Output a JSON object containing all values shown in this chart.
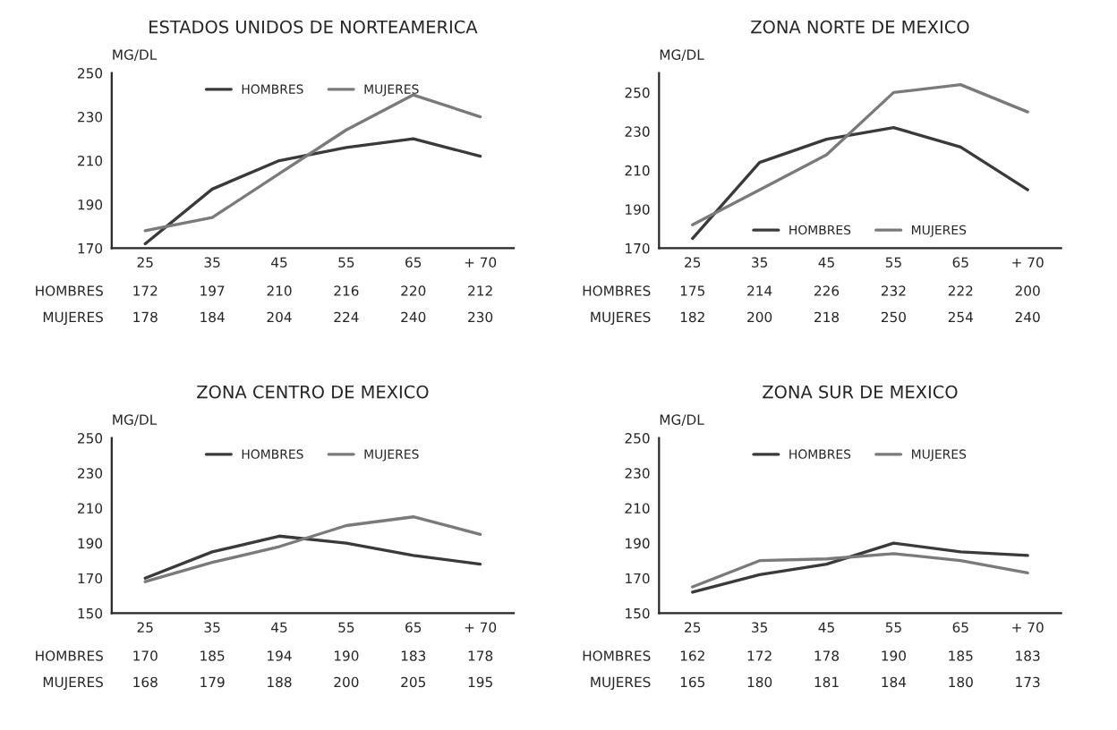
{
  "chart_data": [
    {
      "type": "line",
      "title": "ESTADOS UNIDOS DE NORTEAMERICA",
      "ylabel": "MG/DL",
      "categories": [
        "25",
        "35",
        "45",
        "55",
        "65",
        "+ 70"
      ],
      "ylim": [
        170,
        250
      ],
      "yticks": [
        170,
        190,
        210,
        230,
        250
      ],
      "legend": "top",
      "data_labels": true,
      "series": [
        {
          "name": "HOMBRES",
          "color": "#3a3a3a",
          "values": [
            172,
            197,
            210,
            216,
            220,
            212
          ]
        },
        {
          "name": "MUJERES",
          "color": "#7a7a7a",
          "values": [
            178,
            184,
            204,
            224,
            240,
            230
          ]
        }
      ]
    },
    {
      "type": "line",
      "title": "ZONA NORTE DE MEXICO",
      "ylabel": "MG/DL",
      "categories": [
        "25",
        "35",
        "45",
        "55",
        "65",
        "+ 70"
      ],
      "ylim": [
        170,
        260
      ],
      "yticks": [
        170,
        190,
        210,
        230,
        250
      ],
      "legend": "bottom",
      "data_labels": true,
      "series": [
        {
          "name": "HOMBRES",
          "color": "#3a3a3a",
          "values": [
            175,
            214,
            226,
            232,
            222,
            200
          ]
        },
        {
          "name": "MUJERES",
          "color": "#7a7a7a",
          "values": [
            182,
            200,
            218,
            250,
            254,
            240
          ]
        }
      ]
    },
    {
      "type": "line",
      "title": "ZONA CENTRO DE MEXICO",
      "ylabel": "MG/DL",
      "categories": [
        "25",
        "35",
        "45",
        "55",
        "65",
        "+ 70"
      ],
      "ylim": [
        150,
        250
      ],
      "yticks": [
        150,
        170,
        190,
        210,
        230,
        250
      ],
      "legend": "top",
      "data_labels": true,
      "series": [
        {
          "name": "HOMBRES",
          "color": "#3a3a3a",
          "values": [
            170,
            185,
            194,
            190,
            183,
            178
          ]
        },
        {
          "name": "MUJERES",
          "color": "#7a7a7a",
          "values": [
            168,
            179,
            188,
            200,
            205,
            195
          ]
        }
      ]
    },
    {
      "type": "line",
      "title": "ZONA SUR DE MEXICO",
      "ylabel": "MG/DL",
      "categories": [
        "25",
        "35",
        "45",
        "55",
        "65",
        "+ 70"
      ],
      "ylim": [
        150,
        250
      ],
      "yticks": [
        150,
        170,
        190,
        210,
        230,
        250
      ],
      "legend": "top",
      "data_labels": true,
      "series": [
        {
          "name": "HOMBRES",
          "color": "#3a3a3a",
          "values": [
            162,
            172,
            178,
            190,
            185,
            183
          ]
        },
        {
          "name": "MUJERES",
          "color": "#7a7a7a",
          "values": [
            165,
            180,
            181,
            184,
            180,
            173
          ]
        }
      ]
    }
  ]
}
